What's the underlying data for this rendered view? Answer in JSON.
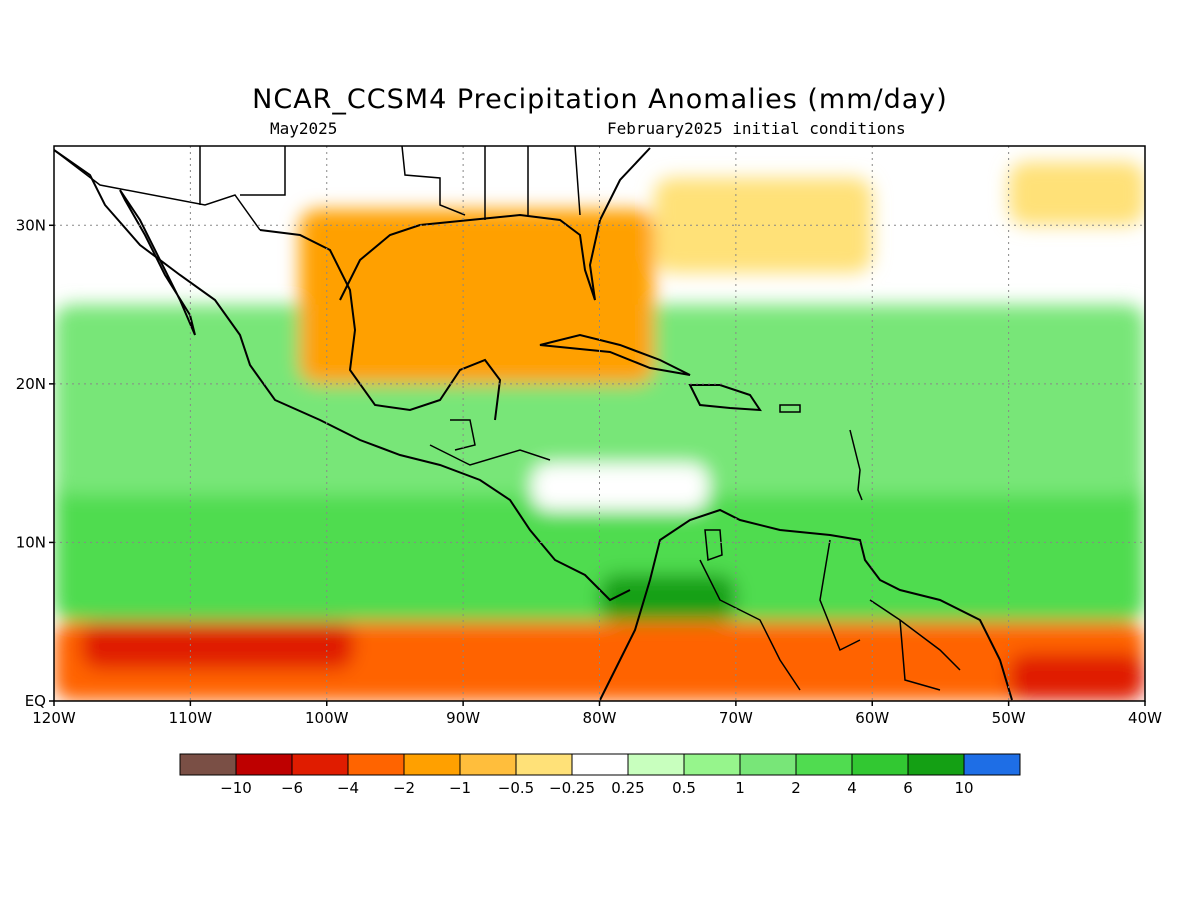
{
  "title": "NCAR_CCSM4 Precipitation Anomalies (mm/day)",
  "subtitle_left": "May2025",
  "subtitle_right": "February2025 initial conditions",
  "map": {
    "lon_range": [
      -120,
      -40
    ],
    "lat_range": [
      0,
      35
    ],
    "grid": true,
    "lon_ticks": [
      {
        "value": -120,
        "label": "120W"
      },
      {
        "value": -110,
        "label": "110W"
      },
      {
        "value": -100,
        "label": "100W"
      },
      {
        "value": -90,
        "label": "90W"
      },
      {
        "value": -80,
        "label": "80W"
      },
      {
        "value": -70,
        "label": "70W"
      },
      {
        "value": -60,
        "label": "60W"
      },
      {
        "value": -50,
        "label": "50W"
      },
      {
        "value": -40,
        "label": "40W"
      }
    ],
    "lat_ticks": [
      {
        "value": 0,
        "label": "EQ"
      },
      {
        "value": 10,
        "label": "10N"
      },
      {
        "value": 20,
        "label": "20N"
      },
      {
        "value": 30,
        "label": "30N"
      }
    ],
    "anomaly_regions": [
      {
        "level": 4,
        "lon": [
          -120,
          -40
        ],
        "lat": [
          5,
          15
        ]
      },
      {
        "level": 3,
        "lon": [
          -120,
          -40
        ],
        "lat": [
          13,
          25
        ]
      },
      {
        "level": -3,
        "lon": [
          -102,
          -76
        ],
        "lat": [
          20,
          31
        ]
      },
      {
        "level": -4,
        "lon": [
          -120,
          -40
        ],
        "lat": [
          0,
          5
        ]
      },
      {
        "level": -5,
        "lon": [
          -118,
          -98
        ],
        "lat": [
          2,
          5
        ]
      },
      {
        "level": -5,
        "lon": [
          -50,
          -40
        ],
        "lat": [
          0,
          3
        ]
      },
      {
        "level": 6,
        "lon": [
          -80,
          -70
        ],
        "lat": [
          5,
          8
        ]
      },
      {
        "level": -1,
        "lon": [
          -76,
          -60
        ],
        "lat": [
          27,
          33
        ]
      },
      {
        "level": -1,
        "lon": [
          -50,
          -40
        ],
        "lat": [
          30,
          34
        ]
      },
      {
        "level": 0,
        "lon": [
          -85,
          -72
        ],
        "lat": [
          12,
          15
        ]
      }
    ]
  },
  "colorbar": {
    "colors": [
      "#7a4f45",
      "#be0000",
      "#e01c00",
      "#ff6400",
      "#ffa000",
      "#ffbe3c",
      "#ffe178",
      "#ffffff",
      "#c8ffbe",
      "#96f58c",
      "#78e678",
      "#50dc50",
      "#32c832",
      "#14a014",
      "#1e6ee6"
    ],
    "labels": [
      "−10",
      "−6",
      "−4",
      "−2",
      "−1",
      "−0.5",
      "−0.25",
      "0.25",
      "0.5",
      "1",
      "2",
      "4",
      "6",
      "10"
    ]
  }
}
